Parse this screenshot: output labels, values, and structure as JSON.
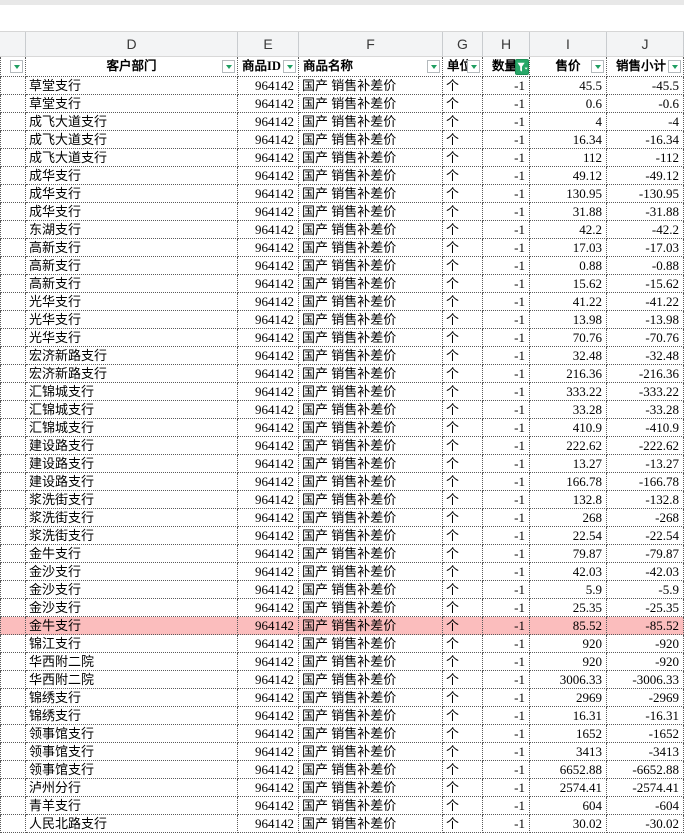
{
  "app": {
    "kind": "spreadsheet",
    "colors": {
      "accent_green": "#1f9e61",
      "active_filter_bg": "#27a768",
      "highlight_pink": "#fbbdbd",
      "letters_bar_bg": "#f3f4f5"
    }
  },
  "columns": {
    "letters": [
      "",
      "D",
      "E",
      "F",
      "G",
      "H",
      "I",
      "J"
    ],
    "headers": [
      {
        "key": "prev",
        "label": "",
        "filter": "normal"
      },
      {
        "key": "dept",
        "label": "客户部门",
        "filter": "normal"
      },
      {
        "key": "product_id",
        "label": "商品ID",
        "filter": "normal"
      },
      {
        "key": "product_name",
        "label": "商品名称",
        "filter": "normal"
      },
      {
        "key": "unit",
        "label": "单位",
        "filter": "normal"
      },
      {
        "key": "quantity",
        "label": "数量",
        "filter": "active"
      },
      {
        "key": "price",
        "label": "售价",
        "filter": "normal"
      },
      {
        "key": "subtotal",
        "label": "销售小计",
        "filter": "normal"
      }
    ]
  },
  "highlighted_row_index": 30,
  "rows": [
    [
      "",
      "草堂支行",
      "964142",
      "国产 销售补差价",
      "个",
      "-1",
      "45.5",
      "-45.5"
    ],
    [
      "",
      "草堂支行",
      "964142",
      "国产 销售补差价",
      "个",
      "-1",
      "0.6",
      "-0.6"
    ],
    [
      "",
      "成飞大道支行",
      "964142",
      "国产 销售补差价",
      "个",
      "-1",
      "4",
      "-4"
    ],
    [
      "",
      "成飞大道支行",
      "964142",
      "国产 销售补差价",
      "个",
      "-1",
      "16.34",
      "-16.34"
    ],
    [
      "",
      "成飞大道支行",
      "964142",
      "国产 销售补差价",
      "个",
      "-1",
      "112",
      "-112"
    ],
    [
      "",
      "成华支行",
      "964142",
      "国产 销售补差价",
      "个",
      "-1",
      "49.12",
      "-49.12"
    ],
    [
      "",
      "成华支行",
      "964142",
      "国产 销售补差价",
      "个",
      "-1",
      "130.95",
      "-130.95"
    ],
    [
      "",
      "成华支行",
      "964142",
      "国产 销售补差价",
      "个",
      "-1",
      "31.88",
      "-31.88"
    ],
    [
      "",
      "东湖支行",
      "964142",
      "国产 销售补差价",
      "个",
      "-1",
      "42.2",
      "-42.2"
    ],
    [
      "",
      "高新支行",
      "964142",
      "国产 销售补差价",
      "个",
      "-1",
      "17.03",
      "-17.03"
    ],
    [
      "",
      "高新支行",
      "964142",
      "国产 销售补差价",
      "个",
      "-1",
      "0.88",
      "-0.88"
    ],
    [
      "",
      "高新支行",
      "964142",
      "国产 销售补差价",
      "个",
      "-1",
      "15.62",
      "-15.62"
    ],
    [
      "",
      "光华支行",
      "964142",
      "国产 销售补差价",
      "个",
      "-1",
      "41.22",
      "-41.22"
    ],
    [
      "",
      "光华支行",
      "964142",
      "国产 销售补差价",
      "个",
      "-1",
      "13.98",
      "-13.98"
    ],
    [
      "",
      "光华支行",
      "964142",
      "国产 销售补差价",
      "个",
      "-1",
      "70.76",
      "-70.76"
    ],
    [
      "",
      "宏济新路支行",
      "964142",
      "国产 销售补差价",
      "个",
      "-1",
      "32.48",
      "-32.48"
    ],
    [
      "",
      "宏济新路支行",
      "964142",
      "国产 销售补差价",
      "个",
      "-1",
      "216.36",
      "-216.36"
    ],
    [
      "",
      "汇锦城支行",
      "964142",
      "国产 销售补差价",
      "个",
      "-1",
      "333.22",
      "-333.22"
    ],
    [
      "",
      "汇锦城支行",
      "964142",
      "国产 销售补差价",
      "个",
      "-1",
      "33.28",
      "-33.28"
    ],
    [
      "",
      "汇锦城支行",
      "964142",
      "国产 销售补差价",
      "个",
      "-1",
      "410.9",
      "-410.9"
    ],
    [
      "",
      "建设路支行",
      "964142",
      "国产 销售补差价",
      "个",
      "-1",
      "222.62",
      "-222.62"
    ],
    [
      "",
      "建设路支行",
      "964142",
      "国产 销售补差价",
      "个",
      "-1",
      "13.27",
      "-13.27"
    ],
    [
      "",
      "建设路支行",
      "964142",
      "国产 销售补差价",
      "个",
      "-1",
      "166.78",
      "-166.78"
    ],
    [
      "",
      "浆洗街支行",
      "964142",
      "国产 销售补差价",
      "个",
      "-1",
      "132.8",
      "-132.8"
    ],
    [
      "",
      "浆洗街支行",
      "964142",
      "国产 销售补差价",
      "个",
      "-1",
      "268",
      "-268"
    ],
    [
      "",
      "浆洗街支行",
      "964142",
      "国产 销售补差价",
      "个",
      "-1",
      "22.54",
      "-22.54"
    ],
    [
      "",
      "金牛支行",
      "964142",
      "国产 销售补差价",
      "个",
      "-1",
      "79.87",
      "-79.87"
    ],
    [
      "",
      "金沙支行",
      "964142",
      "国产 销售补差价",
      "个",
      "-1",
      "42.03",
      "-42.03"
    ],
    [
      "",
      "金沙支行",
      "964142",
      "国产 销售补差价",
      "个",
      "-1",
      "5.9",
      "-5.9"
    ],
    [
      "",
      "金沙支行",
      "964142",
      "国产 销售补差价",
      "个",
      "-1",
      "25.35",
      "-25.35"
    ],
    [
      "",
      "金牛支行",
      "964142",
      "国产 销售补差价",
      "个",
      "-1",
      "85.52",
      "-85.52"
    ],
    [
      "",
      "锦江支行",
      "964142",
      "国产 销售补差价",
      "个",
      "-1",
      "920",
      "-920"
    ],
    [
      "",
      "华西附二院",
      "964142",
      "国产 销售补差价",
      "个",
      "-1",
      "920",
      "-920"
    ],
    [
      "",
      "华西附二院",
      "964142",
      "国产 销售补差价",
      "个",
      "-1",
      "3006.33",
      "-3006.33"
    ],
    [
      "",
      "锦绣支行",
      "964142",
      "国产 销售补差价",
      "个",
      "-1",
      "2969",
      "-2969"
    ],
    [
      "",
      "锦绣支行",
      "964142",
      "国产 销售补差价",
      "个",
      "-1",
      "16.31",
      "-16.31"
    ],
    [
      "",
      "领事馆支行",
      "964142",
      "国产 销售补差价",
      "个",
      "-1",
      "1652",
      "-1652"
    ],
    [
      "",
      "领事馆支行",
      "964142",
      "国产 销售补差价",
      "个",
      "-1",
      "3413",
      "-3413"
    ],
    [
      "",
      "领事馆支行",
      "964142",
      "国产 销售补差价",
      "个",
      "-1",
      "6652.88",
      "-6652.88"
    ],
    [
      "",
      "泸州分行",
      "964142",
      "国产 销售补差价",
      "个",
      "-1",
      "2574.41",
      "-2574.41"
    ],
    [
      "",
      "青羊支行",
      "964142",
      "国产 销售补差价",
      "个",
      "-1",
      "604",
      "-604"
    ],
    [
      "",
      "人民北路支行",
      "964142",
      "国产 销售补差价",
      "个",
      "-1",
      "30.02",
      "-30.02"
    ]
  ]
}
